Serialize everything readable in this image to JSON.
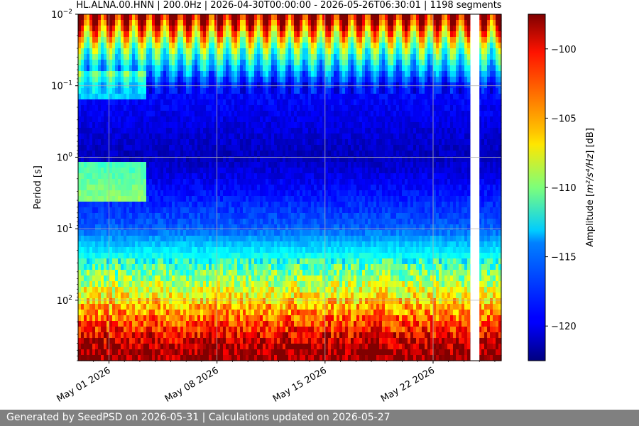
{
  "chart_data": {
    "type": "heatmap",
    "title": "HL.ALNA.00.HNN | 200.0Hz | 2026-04-30T00:00:00 - 2026-05-26T06:30:01 | 1198 segments",
    "ylabel": "Period [s]",
    "yscale": "log",
    "yaxis_inverted": true,
    "ylim": [
      0.01,
      700
    ],
    "yticks": [
      {
        "value": 0.01,
        "base": "10",
        "exp": "−2"
      },
      {
        "value": 0.1,
        "base": "10",
        "exp": "−1"
      },
      {
        "value": 1,
        "base": "10",
        "exp": "0"
      },
      {
        "value": 10,
        "base": "10",
        "exp": "1"
      },
      {
        "value": 100,
        "base": "10",
        "exp": "2"
      }
    ],
    "xlim": [
      "2026-04-29",
      "2026-05-26T10:00"
    ],
    "xticks": [
      {
        "value": "2026-05-01",
        "label": "May 01 2026"
      },
      {
        "value": "2026-05-08",
        "label": "May 08 2026"
      },
      {
        "value": "2026-05-15",
        "label": "May 15 2026"
      },
      {
        "value": "2026-05-22",
        "label": "May 22 2026"
      }
    ],
    "data_gap": [
      "2026-05-24T10:00",
      "2026-05-25T00:00"
    ],
    "colorbar": {
      "label_prefix": "Amplitude [",
      "label_unit": "m²/s⁴/Hz",
      "label_suffix": "] [dB]",
      "colormap": "jet",
      "range": [
        -122.5,
        -97.5
      ],
      "ticks": [
        -100,
        -105,
        -110,
        -115,
        -120
      ]
    },
    "grid": true,
    "description_levels_db": [
      {
        "period": 0.01,
        "amplitude": -98
      },
      {
        "period": 0.03,
        "amplitude": -110
      },
      {
        "period": 0.1,
        "amplitude": -119
      },
      {
        "period": 1,
        "amplitude": -121
      },
      {
        "period": 10,
        "amplitude": -117
      },
      {
        "period": 100,
        "amplitude": -106
      },
      {
        "period": 500,
        "amplitude": -98
      }
    ]
  },
  "footer": {
    "text": "Generated by SeedPSD on 2026-05-31 | Calculations updated on 2026-05-27"
  }
}
